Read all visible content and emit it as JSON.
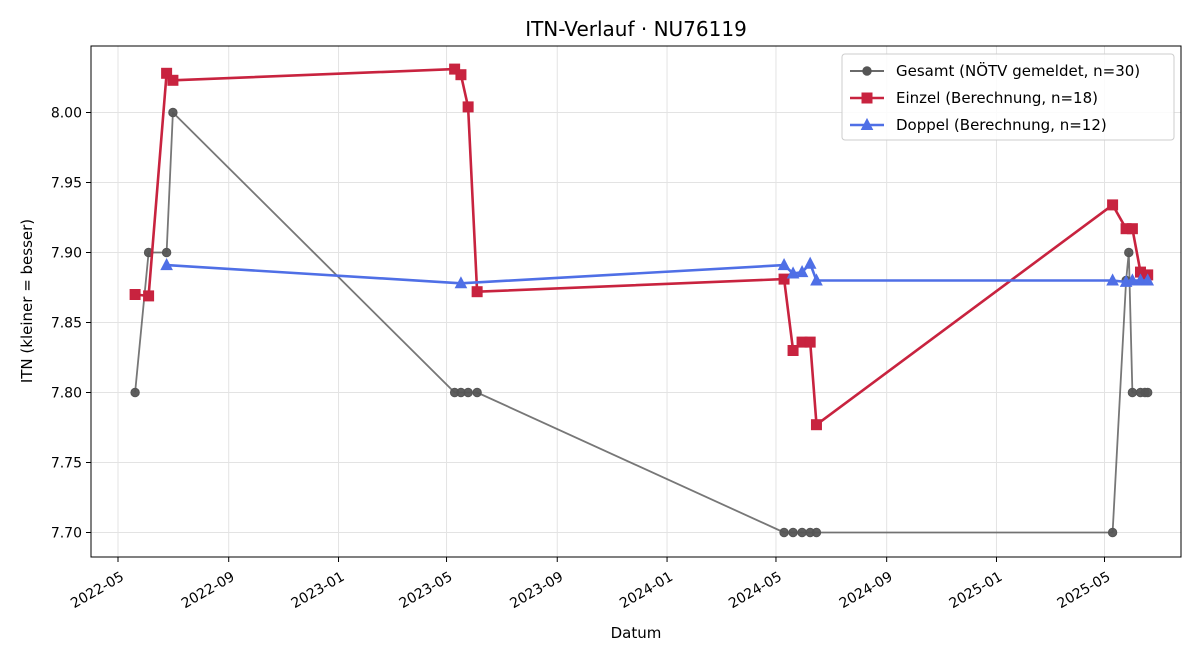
{
  "chart_data": {
    "type": "line",
    "title": "ITN-Verlauf · NU76119",
    "xlabel": "Datum",
    "ylabel": "ITN  (kleiner = besser)",
    "x_scale": "date",
    "xlim": [
      "2022-04-01",
      "2025-07-25"
    ],
    "ylim": [
      7.6825,
      8.0475
    ],
    "x_ticks": [
      "2022-05",
      "2022-09",
      "2023-01",
      "2023-05",
      "2023-09",
      "2024-01",
      "2024-05",
      "2024-09",
      "2025-01",
      "2025-05"
    ],
    "y_ticks": [
      "7.70",
      "7.75",
      "7.80",
      "7.85",
      "7.90",
      "7.95",
      "8.00"
    ],
    "grid": true,
    "legend_position": "top-right",
    "series": [
      {
        "name": "Gesamt (NÖTV gemeldet, n=30)",
        "color": "#555555",
        "marker": "circle",
        "points": [
          [
            "2022-05-20",
            7.8
          ],
          [
            "2022-06-04",
            7.9
          ],
          [
            "2022-06-24",
            7.9
          ],
          [
            "2022-07-01",
            8.0
          ],
          [
            "2023-05-10",
            7.8
          ],
          [
            "2023-05-17",
            7.8
          ],
          [
            "2023-05-25",
            7.8
          ],
          [
            "2023-06-04",
            7.8
          ],
          [
            "2024-05-10",
            7.7
          ],
          [
            "2024-05-20",
            7.7
          ],
          [
            "2024-05-30",
            7.7
          ],
          [
            "2024-06-08",
            7.7
          ],
          [
            "2024-06-15",
            7.7
          ],
          [
            "2025-05-10",
            7.7
          ],
          [
            "2025-05-25",
            7.88
          ],
          [
            "2025-05-28",
            7.9
          ],
          [
            "2025-06-01",
            7.8
          ],
          [
            "2025-06-10",
            7.8
          ],
          [
            "2025-06-15",
            7.8
          ],
          [
            "2025-06-18",
            7.8
          ]
        ]
      },
      {
        "name": "Einzel (Berechnung, n=18)",
        "color": "#c8233f",
        "marker": "square",
        "points": [
          [
            "2022-05-20",
            7.87
          ],
          [
            "2022-06-04",
            7.869
          ],
          [
            "2022-06-24",
            8.028
          ],
          [
            "2022-07-01",
            8.023
          ],
          [
            "2023-05-10",
            8.031
          ],
          [
            "2023-05-17",
            8.027
          ],
          [
            "2023-05-25",
            8.004
          ],
          [
            "2023-06-04",
            7.872
          ],
          [
            "2024-05-10",
            7.881
          ],
          [
            "2024-05-20",
            7.83
          ],
          [
            "2024-05-30",
            7.836
          ],
          [
            "2024-06-08",
            7.836
          ],
          [
            "2024-06-15",
            7.777
          ],
          [
            "2025-05-10",
            7.934
          ],
          [
            "2025-05-25",
            7.917
          ],
          [
            "2025-06-01",
            7.917
          ],
          [
            "2025-06-10",
            7.886
          ],
          [
            "2025-06-18",
            7.884
          ]
        ]
      },
      {
        "name": "Doppel (Berechnung, n=12)",
        "color": "#4f6fe6",
        "marker": "triangle",
        "points": [
          [
            "2022-06-24",
            7.891
          ],
          [
            "2023-05-17",
            7.878
          ],
          [
            "2024-05-10",
            7.891
          ],
          [
            "2024-05-20",
            7.885
          ],
          [
            "2024-05-30",
            7.886
          ],
          [
            "2024-06-08",
            7.892
          ],
          [
            "2024-06-15",
            7.88
          ],
          [
            "2025-05-10",
            7.88
          ],
          [
            "2025-05-25",
            7.879
          ],
          [
            "2025-06-01",
            7.88
          ],
          [
            "2025-06-10",
            7.88
          ],
          [
            "2025-06-18",
            7.88
          ]
        ]
      }
    ]
  }
}
